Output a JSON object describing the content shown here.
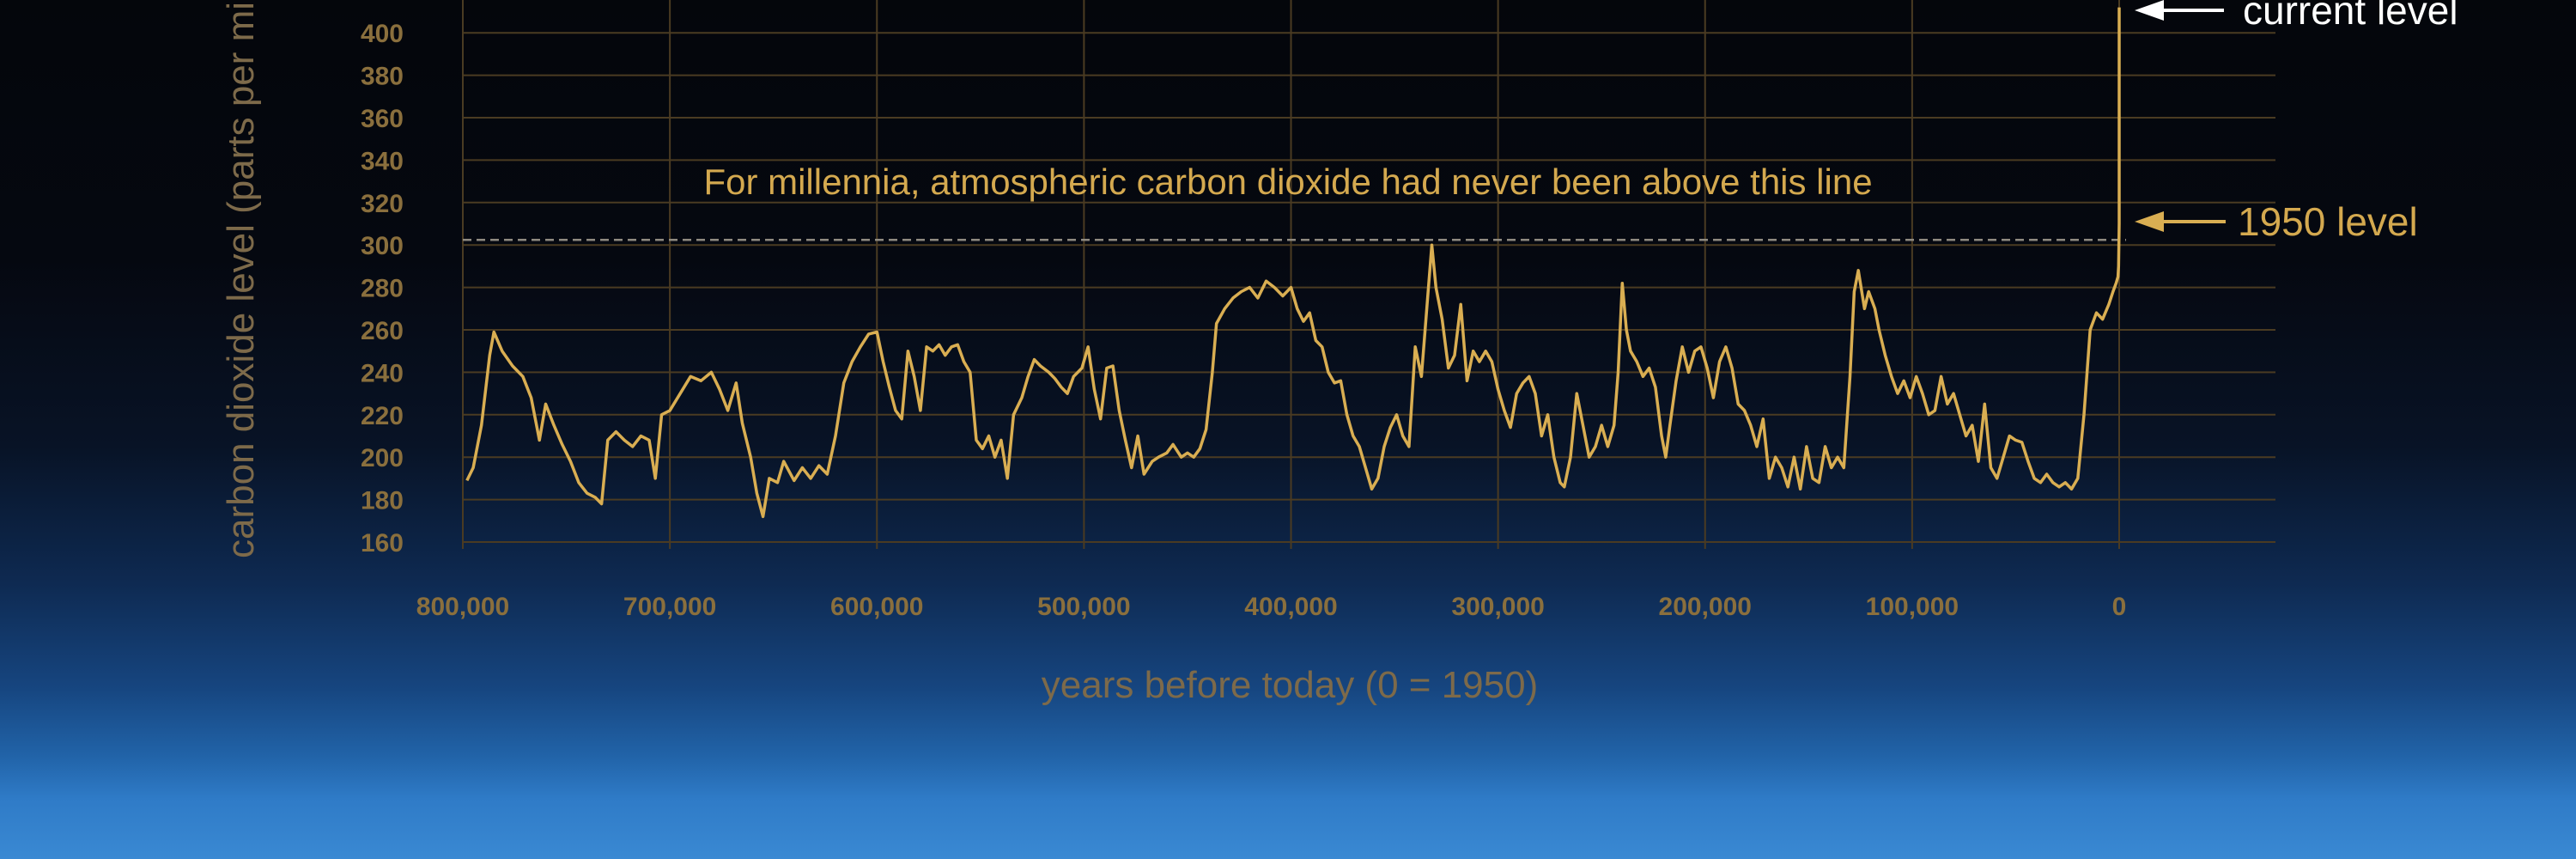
{
  "chart_data": {
    "type": "line",
    "xlabel": "years before today (0 = 1950)",
    "ylabel": "carbon dioxide level (parts per million)",
    "xlim": [
      800000,
      0
    ],
    "ylim": [
      160,
      420
    ],
    "x_ticks": [
      800000,
      700000,
      600000,
      500000,
      400000,
      300000,
      200000,
      100000,
      0
    ],
    "x_tick_labels": [
      "800,000",
      "700,000",
      "600,000",
      "500,000",
      "400,000",
      "300,000",
      "200,000",
      "100,000",
      "0"
    ],
    "y_ticks": [
      160,
      180,
      200,
      220,
      240,
      260,
      280,
      300,
      320,
      340,
      360,
      380,
      400
    ],
    "y_tick_labels": [
      "160",
      "180",
      "200",
      "220",
      "240",
      "260",
      "280",
      "300",
      "320",
      "340",
      "360",
      "380",
      "400"
    ],
    "grid": true,
    "colors": {
      "line": "#d9ae52",
      "grid": "#4a3b22",
      "reference": "#8f8a80"
    },
    "reference_line": {
      "y": 300,
      "label": "For millennia, atmospheric carbon dioxide had never been above this line"
    },
    "annotations": {
      "current_level": {
        "label": "current level",
        "y": 412
      },
      "level_1950": {
        "label": "1950 level",
        "y": 310
      }
    },
    "series": [
      {
        "values": [
          [
            798000,
            189
          ],
          [
            795000,
            195
          ],
          [
            791000,
            215
          ],
          [
            787000,
            248
          ],
          [
            785000,
            259
          ],
          [
            781000,
            250
          ],
          [
            776000,
            243
          ],
          [
            771000,
            238
          ],
          [
            767000,
            228
          ],
          [
            763000,
            208
          ],
          [
            760000,
            225
          ],
          [
            756000,
            215
          ],
          [
            752000,
            206
          ],
          [
            748000,
            198
          ],
          [
            744000,
            188
          ],
          [
            740000,
            183
          ],
          [
            736000,
            181
          ],
          [
            733000,
            178
          ],
          [
            730000,
            208
          ],
          [
            726000,
            212
          ],
          [
            722000,
            208
          ],
          [
            718000,
            205
          ],
          [
            714000,
            210
          ],
          [
            710000,
            208
          ],
          [
            707000,
            190
          ],
          [
            704000,
            220
          ],
          [
            700000,
            222
          ],
          [
            695000,
            230
          ],
          [
            690000,
            238
          ],
          [
            685000,
            236
          ],
          [
            680000,
            240
          ],
          [
            676000,
            232
          ],
          [
            672000,
            222
          ],
          [
            668000,
            235
          ],
          [
            665000,
            216
          ],
          [
            661000,
            200
          ],
          [
            658000,
            183
          ],
          [
            655000,
            172
          ],
          [
            652000,
            190
          ],
          [
            648000,
            188
          ],
          [
            645000,
            198
          ],
          [
            640000,
            189
          ],
          [
            636000,
            195
          ],
          [
            632000,
            190
          ],
          [
            628000,
            196
          ],
          [
            624000,
            192
          ],
          [
            620000,
            210
          ],
          [
            616000,
            235
          ],
          [
            612000,
            245
          ],
          [
            608000,
            252
          ],
          [
            604000,
            258
          ],
          [
            600000,
            259
          ],
          [
            597000,
            245
          ],
          [
            594000,
            233
          ],
          [
            591000,
            222
          ],
          [
            588000,
            218
          ],
          [
            585000,
            250
          ],
          [
            582000,
            238
          ],
          [
            579000,
            222
          ],
          [
            576000,
            252
          ],
          [
            573000,
            250
          ],
          [
            570000,
            253
          ],
          [
            567000,
            248
          ],
          [
            564000,
            252
          ],
          [
            561000,
            253
          ],
          [
            558000,
            245
          ],
          [
            555000,
            240
          ],
          [
            552000,
            208
          ],
          [
            549000,
            204
          ],
          [
            546000,
            210
          ],
          [
            543000,
            200
          ],
          [
            540000,
            208
          ],
          [
            537000,
            190
          ],
          [
            534000,
            220
          ],
          [
            530000,
            228
          ],
          [
            527000,
            238
          ],
          [
            524000,
            246
          ],
          [
            521000,
            243
          ],
          [
            517000,
            240
          ],
          [
            514000,
            237
          ],
          [
            511000,
            233
          ],
          [
            508000,
            230
          ],
          [
            505000,
            238
          ],
          [
            501000,
            242
          ],
          [
            498000,
            252
          ],
          [
            495000,
            232
          ],
          [
            492000,
            218
          ],
          [
            489000,
            242
          ],
          [
            486000,
            243
          ],
          [
            483000,
            222
          ],
          [
            480000,
            208
          ],
          [
            477000,
            195
          ],
          [
            474000,
            210
          ],
          [
            471000,
            192
          ],
          [
            467000,
            198
          ],
          [
            464000,
            200
          ],
          [
            460000,
            202
          ],
          [
            457000,
            206
          ],
          [
            453000,
            200
          ],
          [
            450000,
            202
          ],
          [
            447000,
            200
          ],
          [
            444000,
            204
          ],
          [
            441000,
            213
          ],
          [
            438000,
            240
          ],
          [
            436000,
            263
          ],
          [
            432000,
            270
          ],
          [
            428000,
            275
          ],
          [
            424000,
            278
          ],
          [
            420000,
            280
          ],
          [
            416000,
            275
          ],
          [
            412000,
            283
          ],
          [
            408000,
            280
          ],
          [
            404000,
            276
          ],
          [
            400000,
            280
          ],
          [
            397000,
            270
          ],
          [
            394000,
            264
          ],
          [
            391000,
            268
          ],
          [
            388000,
            255
          ],
          [
            385000,
            252
          ],
          [
            382000,
            240
          ],
          [
            379000,
            235
          ],
          [
            376000,
            236
          ],
          [
            373000,
            220
          ],
          [
            370000,
            210
          ],
          [
            367000,
            205
          ],
          [
            364000,
            195
          ],
          [
            361000,
            185
          ],
          [
            358000,
            190
          ],
          [
            355000,
            205
          ],
          [
            352000,
            214
          ],
          [
            349000,
            220
          ],
          [
            346000,
            210
          ],
          [
            343000,
            205
          ],
          [
            340000,
            252
          ],
          [
            337000,
            238
          ],
          [
            334000,
            275
          ],
          [
            332000,
            300
          ],
          [
            330000,
            280
          ],
          [
            327000,
            265
          ],
          [
            324000,
            242
          ],
          [
            321000,
            248
          ],
          [
            318000,
            272
          ],
          [
            315000,
            236
          ],
          [
            312000,
            250
          ],
          [
            309000,
            245
          ],
          [
            306000,
            250
          ],
          [
            303000,
            245
          ],
          [
            300000,
            232
          ],
          [
            297000,
            222
          ],
          [
            294000,
            214
          ],
          [
            291000,
            230
          ],
          [
            288000,
            235
          ],
          [
            285000,
            238
          ],
          [
            282000,
            230
          ],
          [
            279000,
            210
          ],
          [
            276000,
            220
          ],
          [
            273000,
            200
          ],
          [
            270000,
            188
          ],
          [
            268000,
            186
          ],
          [
            265000,
            200
          ],
          [
            262000,
            230
          ],
          [
            259000,
            215
          ],
          [
            256000,
            200
          ],
          [
            253000,
            205
          ],
          [
            250000,
            215
          ],
          [
            247000,
            205
          ],
          [
            244000,
            215
          ],
          [
            242000,
            240
          ],
          [
            240000,
            282
          ],
          [
            238000,
            260
          ],
          [
            236000,
            250
          ],
          [
            233000,
            245
          ],
          [
            230000,
            238
          ],
          [
            227000,
            242
          ],
          [
            224000,
            233
          ],
          [
            221000,
            210
          ],
          [
            219000,
            200
          ],
          [
            217000,
            215
          ],
          [
            214000,
            236
          ],
          [
            211000,
            252
          ],
          [
            208000,
            240
          ],
          [
            205000,
            250
          ],
          [
            202000,
            252
          ],
          [
            199000,
            242
          ],
          [
            196000,
            228
          ],
          [
            193000,
            245
          ],
          [
            190000,
            252
          ],
          [
            187000,
            242
          ],
          [
            184000,
            225
          ],
          [
            181000,
            222
          ],
          [
            178000,
            215
          ],
          [
            175000,
            205
          ],
          [
            172000,
            218
          ],
          [
            169000,
            190
          ],
          [
            166000,
            200
          ],
          [
            163000,
            195
          ],
          [
            160000,
            186
          ],
          [
            157000,
            200
          ],
          [
            154000,
            185
          ],
          [
            151000,
            205
          ],
          [
            148000,
            190
          ],
          [
            145000,
            188
          ],
          [
            142000,
            205
          ],
          [
            139000,
            195
          ],
          [
            136000,
            200
          ],
          [
            133000,
            195
          ],
          [
            130000,
            238
          ],
          [
            128000,
            278
          ],
          [
            126000,
            288
          ],
          [
            123000,
            270
          ],
          [
            121000,
            278
          ],
          [
            118000,
            270
          ],
          [
            116000,
            260
          ],
          [
            113000,
            248
          ],
          [
            110000,
            238
          ],
          [
            107000,
            230
          ],
          [
            104000,
            236
          ],
          [
            101000,
            228
          ],
          [
            98000,
            238
          ],
          [
            95000,
            230
          ],
          [
            92000,
            220
          ],
          [
            89000,
            222
          ],
          [
            86000,
            238
          ],
          [
            83000,
            225
          ],
          [
            80000,
            230
          ],
          [
            77000,
            220
          ],
          [
            74000,
            210
          ],
          [
            71000,
            215
          ],
          [
            68000,
            198
          ],
          [
            65000,
            225
          ],
          [
            62000,
            195
          ],
          [
            59000,
            190
          ],
          [
            56000,
            200
          ],
          [
            53000,
            210
          ],
          [
            50000,
            208
          ],
          [
            47000,
            207
          ],
          [
            44000,
            198
          ],
          [
            41000,
            190
          ],
          [
            38000,
            188
          ],
          [
            35000,
            192
          ],
          [
            32000,
            188
          ],
          [
            29000,
            186
          ],
          [
            26000,
            188
          ],
          [
            23000,
            185
          ],
          [
            20000,
            190
          ],
          [
            17000,
            220
          ],
          [
            14000,
            260
          ],
          [
            11000,
            268
          ],
          [
            8000,
            265
          ],
          [
            5000,
            272
          ],
          [
            3000,
            278
          ],
          [
            1500,
            282
          ],
          [
            600,
            285
          ],
          [
            300,
            290
          ],
          [
            0,
            310
          ],
          [
            0,
            412
          ]
        ]
      }
    ]
  }
}
